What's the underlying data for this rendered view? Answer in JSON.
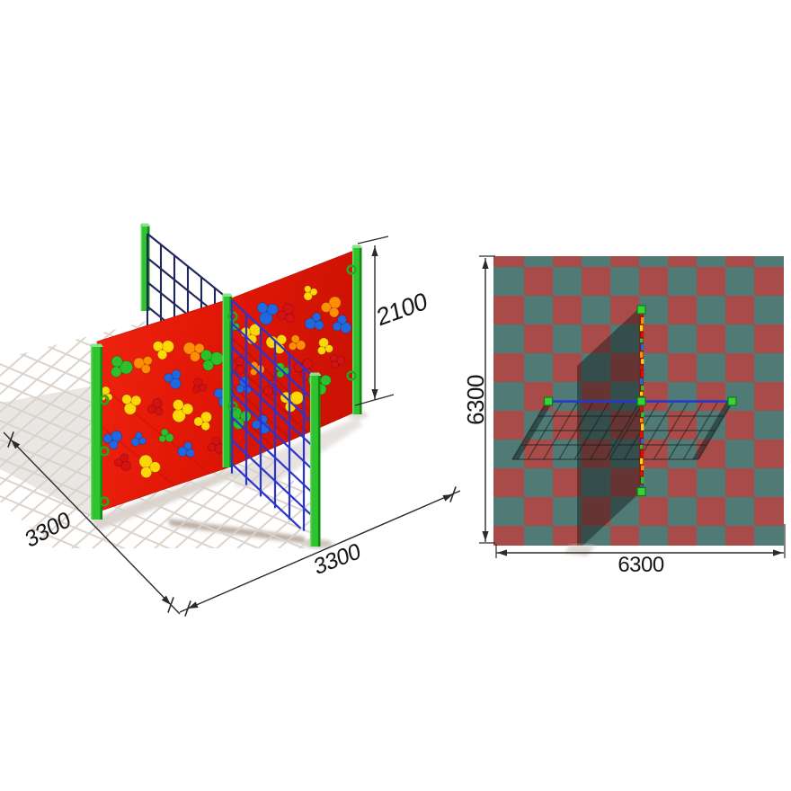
{
  "labels": {
    "wall_height_mm": "2100",
    "base_depth_mm": "3300",
    "base_width_mm": "3300",
    "zone_depth_mm": "6300",
    "zone_width_mm": "6300"
  },
  "colors": {
    "wall_red": "#e51b07",
    "wall_red_dark": "#c01104",
    "post_green": "#2fc32f",
    "post_green_shade": "#128a12",
    "post_green_light": "#8ce28c",
    "net_front": "#2a35d0",
    "net_back": "#20265e",
    "plan_net_blue": "#2438d8",
    "hold_yellow": "#ffd608",
    "hold_orange": "#ff8e05",
    "hold_blue": "#2068e0",
    "hold_green": "#2cc02c",
    "hold_red": "#d41212",
    "hold_dark_red": "#a80f0f",
    "mat_red": "#a94b49",
    "mat_teal": "#4f7a75",
    "shadow_overlay": "rgba(15,22,22,0.44)",
    "ground_shadow_line": "#dbd2ca",
    "ground_shadow_soft": "#cfc6bf",
    "dim_line": "#2b2b2b",
    "dim_text": "#161616"
  }
}
